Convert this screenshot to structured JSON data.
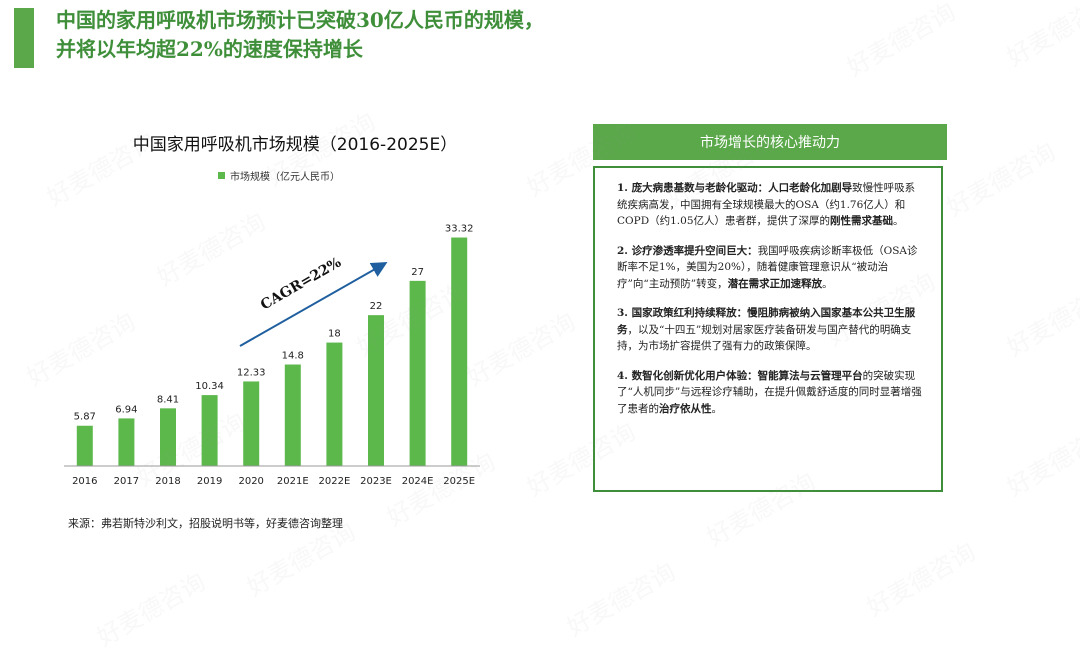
{
  "header": {
    "title_line1": "中国的家用呼吸机市场预计已突破30亿人民币的规模，",
    "title_line2": "并将以年均超22%的速度保持增长"
  },
  "chart": {
    "title": "中国家用呼吸机市场规模（2016-2025E）",
    "cagr_label": "CAGR=22%"
  },
  "chart_data": {
    "type": "bar",
    "title": "中国家用呼吸机市场规模（2016-2025E）",
    "categories": [
      "2016",
      "2017",
      "2018",
      "2019",
      "2020",
      "2021E",
      "2022E",
      "2023E",
      "2024E",
      "2025E"
    ],
    "series": [
      {
        "name": "市场规模（亿元人民币）",
        "values": [
          5.87,
          6.94,
          8.41,
          10.34,
          12.33,
          14.8,
          18,
          22,
          27,
          33.32
        ]
      }
    ],
    "value_labels": [
      "5.87",
      "6.94",
      "8.41",
      "10.34",
      "12.33",
      "14.8",
      "18",
      "22",
      "27",
      "33.32"
    ],
    "ylim": [
      0,
      35
    ],
    "annotation": "CAGR=22%",
    "grid": false,
    "legend_position": "top",
    "bar_color": "#5cb84b"
  },
  "source": "来源：弗若斯特沙利文，招股说明书等，好麦德咨询整理",
  "panel": {
    "header": "市场增长的核心推动力",
    "items": [
      {
        "lead": "1. 庞大病患基数与老龄化驱动：",
        "bold_text": "人口老龄化加剧导",
        "text": "致慢性呼吸系统疾病高发，中国拥有全球规模最大的OSA（约1.76亿人）和COPD（约1.05亿人）患者群，提供了深厚的",
        "bold_end": "刚性需求基础",
        "tail": "。"
      },
      {
        "lead": "2. 诊疗渗透率提升空间巨大：",
        "bold_text": "",
        "text": "我国呼吸疾病诊断率极低（OSA诊断率不足1%，美国为20%），随着健康管理意识从“被动治疗”向“主动预防”转变，",
        "bold_end": "潜在需求正加速释放",
        "tail": "。"
      },
      {
        "lead": "3. 国家政策红利持续释放：",
        "bold_text": "慢阻肺病被纳入国家基本公共卫生服务",
        "text": "，以及“十四五”规划对居家医疗装备研发与国产替代的明确支持，为市场扩容提供了强有力的政策保障。",
        "bold_end": "",
        "tail": ""
      },
      {
        "lead": "4. 数智化创新优化用户体验：",
        "bold_text": "智能算法与云管理平台",
        "text": "的突破实现了“人机同步”与远程诊疗辅助，在提升佩戴舒适度的同时显著增强了患者的",
        "bold_end": "治疗依从性",
        "tail": "。"
      }
    ]
  },
  "watermark": "好麦德咨询"
}
